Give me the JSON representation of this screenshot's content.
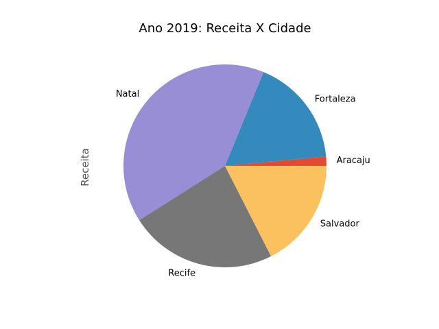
{
  "chart_data": {
    "type": "pie",
    "title": "Ano 2019: Receita X Cidade",
    "ylabel": "Receita",
    "categories": [
      "Aracaju",
      "Fortaleza",
      "Natal",
      "Recife",
      "Salvador"
    ],
    "values": [
      1.5,
      17.3,
      40.2,
      23.5,
      17.5
    ],
    "colors": {
      "Aracaju": "#e24a33",
      "Fortaleza": "#348abd",
      "Natal": "#988ed5",
      "Recife": "#777777",
      "Salvador": "#fbc15e"
    },
    "start_angle_deg": 0,
    "direction": "counterclockwise"
  }
}
